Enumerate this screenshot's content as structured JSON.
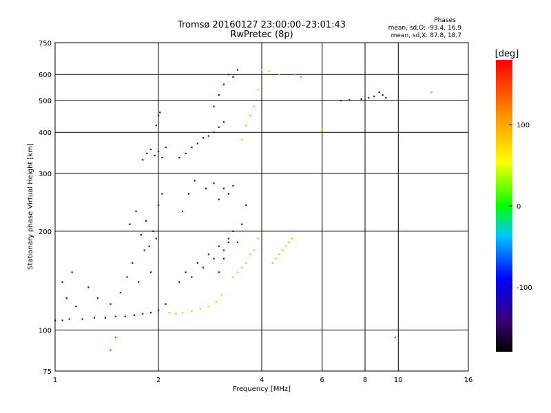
{
  "chart_data": {
    "type": "scatter",
    "title": "Tromsø 20160127 23:00:00–23:01:43",
    "subtitle": "RwPretec (8p)",
    "stats": {
      "heading": "Phases",
      "line1": "mean, sd,O: -93.4, 16.9",
      "line2": "mean, sd,X:  87.8, 18.7"
    },
    "xlabel": "Frequency [MHz]",
    "ylabel": "Stationary phase Virtual Height [km]",
    "x_scale": "log",
    "y_scale": "log",
    "xlim": [
      1,
      16
    ],
    "ylim": [
      75,
      750
    ],
    "grid": true,
    "x_ticks": [
      {
        "value": 1,
        "label": "1"
      },
      {
        "value": 2,
        "label": "2"
      },
      {
        "value": 4,
        "label": "4"
      },
      {
        "value": 6,
        "label": "6"
      },
      {
        "value": 8,
        "label": "8"
      },
      {
        "value": 10,
        "label": "10"
      },
      {
        "value": 16,
        "label": "16"
      }
    ],
    "y_ticks": [
      {
        "value": 75,
        "label": "75"
      },
      {
        "value": 100,
        "label": "100"
      },
      {
        "value": 200,
        "label": "200"
      },
      {
        "value": 300,
        "label": "300"
      },
      {
        "value": 400,
        "label": "400"
      },
      {
        "value": 500,
        "label": "500"
      },
      {
        "value": 600,
        "label": "600"
      },
      {
        "value": 750,
        "label": "750"
      }
    ],
    "colorbar": {
      "label": "[deg]",
      "range": [
        -180,
        180
      ],
      "ticks": [
        {
          "value": 100,
          "label": "100"
        },
        {
          "value": 0,
          "label": "0"
        },
        {
          "value": -100,
          "label": "-100"
        }
      ]
    },
    "series": [
      {
        "x": [
          1.0,
          1.05,
          1.1,
          1.2,
          1.3,
          1.4,
          1.5,
          1.6,
          1.7,
          1.8,
          1.9,
          2.0,
          2.1
        ],
        "y": [
          107,
          107,
          108,
          108,
          109,
          109,
          110,
          110,
          111,
          112,
          113,
          115,
          120
        ],
        "phase": -110
      },
      {
        "x": [
          1.05,
          1.08,
          1.12,
          1.15,
          1.25,
          1.33,
          1.45,
          1.55,
          1.62,
          1.68,
          1.75,
          1.82,
          1.9,
          1.97
        ],
        "y": [
          140,
          125,
          150,
          118,
          135,
          125,
          120,
          130,
          145,
          160,
          140,
          175,
          150,
          190
        ],
        "phase": -115
      },
      {
        "x": [
          1.65,
          1.72,
          1.78,
          1.84,
          1.88,
          1.93,
          2.0,
          2.05
        ],
        "y": [
          210,
          230,
          195,
          215,
          180,
          200,
          240,
          260
        ],
        "phase": -125
      },
      {
        "x": [
          1.8,
          1.85,
          1.9,
          1.95,
          2.0,
          2.05,
          2.1
        ],
        "y": [
          330,
          345,
          355,
          340,
          350,
          335,
          360
        ],
        "phase": -120
      },
      {
        "x": [
          1.97,
          2.0,
          2.02
        ],
        "y": [
          420,
          450,
          460
        ],
        "phase": -125
      },
      {
        "x": [
          2.15,
          2.25,
          2.35,
          2.5,
          2.65,
          2.8,
          2.95,
          3.05
        ],
        "y": [
          113,
          112,
          113,
          114,
          116,
          118,
          122,
          128
        ],
        "phase": 90
      },
      {
        "x": [
          2.3,
          2.4,
          2.5,
          2.6,
          2.7,
          2.8,
          2.9,
          3.0,
          3.1,
          3.2
        ],
        "y": [
          140,
          150,
          145,
          160,
          155,
          170,
          165,
          180,
          175,
          190
        ],
        "phase": -110
      },
      {
        "x": [
          2.3,
          2.4,
          2.5,
          2.6,
          2.7,
          2.8,
          2.9,
          3.0,
          3.1
        ],
        "y": [
          335,
          345,
          360,
          370,
          385,
          390,
          400,
          415,
          430
        ],
        "phase": -105
      },
      {
        "x": [
          2.35,
          2.45,
          2.55,
          2.75,
          2.9,
          3.0,
          3.1,
          3.2,
          3.3
        ],
        "y": [
          230,
          260,
          285,
          270,
          280,
          250,
          270,
          260,
          275
        ],
        "phase": -135
      },
      {
        "x": [
          3.0,
          3.1,
          3.2,
          3.3,
          3.4,
          3.5,
          3.6
        ],
        "y": [
          150,
          165,
          185,
          200,
          185,
          210,
          240
        ],
        "phase": -145
      },
      {
        "x": [
          3.3,
          3.4,
          3.5,
          3.6,
          3.7,
          3.8,
          3.9
        ],
        "y": [
          145,
          150,
          155,
          160,
          170,
          175,
          190
        ],
        "phase": 95
      },
      {
        "x": [
          3.5,
          3.6,
          3.7,
          3.8,
          3.9,
          4.0
        ],
        "y": [
          380,
          420,
          450,
          480,
          540,
          620
        ],
        "phase": 100
      },
      {
        "x": [
          2.9,
          3.0,
          3.1,
          3.2,
          3.3,
          3.4
        ],
        "y": [
          480,
          520,
          560,
          600,
          590,
          620
        ],
        "phase": -105
      },
      {
        "x": [
          4.3,
          4.4,
          4.5,
          4.6,
          4.7,
          4.8,
          4.9
        ],
        "y": [
          160,
          165,
          170,
          175,
          180,
          185,
          190
        ],
        "phase": 100
      },
      {
        "x": [
          6.8,
          7.2,
          7.8,
          8.2,
          8.5,
          8.8,
          9.0,
          9.2
        ],
        "y": [
          500,
          502,
          505,
          510,
          515,
          530,
          520,
          510
        ],
        "phase": -125
      },
      {
        "x": [
          5.0,
          5.2,
          12.5
        ],
        "y": [
          600,
          590,
          530
        ],
        "phase": 120
      },
      {
        "x": [
          1.45,
          1.5,
          9.8
        ],
        "y": [
          87,
          95,
          95
        ],
        "phase": 150
      },
      {
        "x": [
          4.0,
          4.2,
          4.5,
          6.0
        ],
        "y": [
          620,
          615,
          600,
          410
        ],
        "phase": 30
      }
    ]
  }
}
